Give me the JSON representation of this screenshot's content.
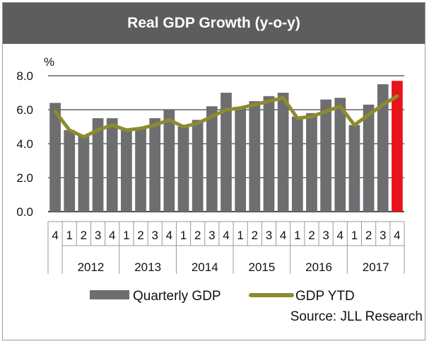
{
  "chart_data": {
    "type": "bar+line",
    "title": "Real GDP Growth (y-o-y)",
    "ylabel": "%",
    "ylim": [
      0,
      8
    ],
    "yticks": [
      "0.0",
      "2.0",
      "4.0",
      "6.0",
      "8.0"
    ],
    "quarters": [
      "4",
      "1",
      "2",
      "3",
      "4",
      "1",
      "2",
      "3",
      "4",
      "1",
      "2",
      "3",
      "4",
      "1",
      "2",
      "3",
      "4",
      "1",
      "2",
      "3",
      "4",
      "1",
      "2",
      "3",
      "4"
    ],
    "years": [
      "2012",
      "2013",
      "2014",
      "2015",
      "2016",
      "2017"
    ],
    "series": [
      {
        "name": "Quarterly GDP",
        "kind": "bar",
        "values": [
          6.4,
          4.8,
          4.5,
          5.5,
          5.5,
          4.8,
          4.9,
          5.5,
          6.0,
          5.0,
          5.4,
          6.2,
          7.0,
          6.1,
          6.5,
          6.8,
          7.0,
          5.6,
          5.8,
          6.6,
          6.7,
          5.1,
          6.3,
          7.5,
          7.7
        ]
      },
      {
        "name": "GDP YTD",
        "kind": "line",
        "values": [
          5.9,
          4.8,
          4.4,
          4.8,
          5.1,
          4.8,
          4.9,
          5.1,
          5.4,
          5.0,
          5.2,
          5.6,
          6.0,
          6.1,
          6.3,
          6.5,
          6.7,
          5.5,
          5.6,
          5.9,
          6.2,
          5.1,
          5.7,
          6.3,
          6.8
        ]
      }
    ],
    "highlight_index": 24,
    "colors": {
      "bar": "#6d6e70",
      "highlight": "#e8141c",
      "line": "#8e8b2e"
    },
    "legend_position": "bottom",
    "source": "Source: JLL Research"
  }
}
